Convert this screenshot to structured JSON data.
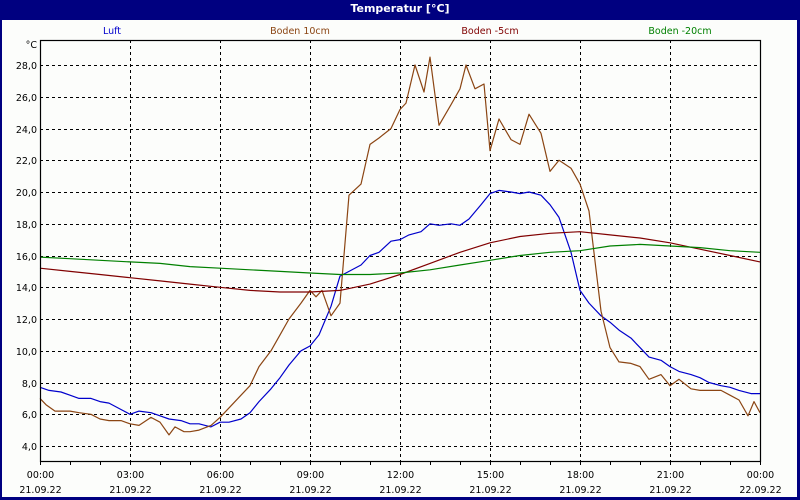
{
  "window": {
    "title": "Temperatur [°C]"
  },
  "chart_data": {
    "type": "line",
    "title": "Temperatur [°C]",
    "ylabel": "°C",
    "xlabel": "",
    "ylim": [
      3.0,
      30.0
    ],
    "grid": true,
    "legend_position": "top",
    "y_ticks": [
      "4,0",
      "6,0",
      "8,0",
      "10,0",
      "12,0",
      "14,0",
      "16,0",
      "18,0",
      "20,0",
      "22,0",
      "24,0",
      "26,0",
      "28,0"
    ],
    "x_ticks": [
      {
        "time": "00:00",
        "date": "21.09.22"
      },
      {
        "time": "03:00",
        "date": "21.09.22"
      },
      {
        "time": "06:00",
        "date": "21.09.22"
      },
      {
        "time": "09:00",
        "date": "21.09.22"
      },
      {
        "time": "12:00",
        "date": "21.09.22"
      },
      {
        "time": "15:00",
        "date": "21.09.22"
      },
      {
        "time": "18:00",
        "date": "21.09.22"
      },
      {
        "time": "21:00",
        "date": "21.09.22"
      },
      {
        "time": "00:00",
        "date": "22.09.22"
      }
    ],
    "x_unit": "hours since 21.09.22 00:00",
    "series": [
      {
        "name": "Luft",
        "color": "#0000cc",
        "x": [
          0,
          0.3,
          0.7,
          1,
          1.3,
          1.7,
          2,
          2.3,
          2.7,
          3,
          3.3,
          3.7,
          4,
          4.3,
          4.7,
          5,
          5.3,
          5.7,
          6,
          6.3,
          6.7,
          7,
          7.3,
          7.7,
          8,
          8.3,
          8.7,
          9,
          9.3,
          9.7,
          10,
          10.3,
          10.7,
          11,
          11.3,
          11.7,
          12,
          12.3,
          12.7,
          13,
          13.3,
          13.7,
          14,
          14.3,
          14.7,
          15,
          15.3,
          15.7,
          16,
          16.3,
          16.7,
          17,
          17.3,
          17.7,
          18,
          18.3,
          18.7,
          19,
          19.3,
          19.7,
          20,
          20.3,
          20.7,
          21,
          21.3,
          21.7,
          22,
          22.3,
          22.7,
          23,
          23.3,
          23.7,
          24
        ],
        "values": [
          7.7,
          7.5,
          7.4,
          7.2,
          7.0,
          7.0,
          6.8,
          6.7,
          6.3,
          6.0,
          6.2,
          6.1,
          5.9,
          5.7,
          5.6,
          5.4,
          5.4,
          5.2,
          5.5,
          5.5,
          5.7,
          6.1,
          6.8,
          7.6,
          8.3,
          9.1,
          10.0,
          10.3,
          11.0,
          12.8,
          14.7,
          15.0,
          15.4,
          16.0,
          16.2,
          16.9,
          17.0,
          17.3,
          17.5,
          18.0,
          17.9,
          18.0,
          17.9,
          18.3,
          19.2,
          19.9,
          20.1,
          20.0,
          19.9,
          20.0,
          19.8,
          19.2,
          18.4,
          16.2,
          13.8,
          13.0,
          12.2,
          11.8,
          11.3,
          10.8,
          10.2,
          9.6,
          9.4,
          9.0,
          8.7,
          8.5,
          8.3,
          8.0,
          7.8,
          7.7,
          7.5,
          7.3,
          7.3
        ]
      },
      {
        "name": "Boden 10cm",
        "color": "#8b4513",
        "x": [
          0,
          0.2,
          0.5,
          1,
          1.3,
          1.7,
          2,
          2.3,
          2.7,
          3,
          3.3,
          3.7,
          4,
          4.3,
          4.5,
          4.8,
          5,
          5.3,
          5.7,
          6,
          6.3,
          6.7,
          7,
          7.3,
          7.7,
          8,
          8.3,
          8.7,
          9,
          9.2,
          9.4,
          9.7,
          10,
          10.3,
          10.7,
          11,
          11.3,
          11.7,
          12,
          12.2,
          12.5,
          12.8,
          13,
          13.3,
          13.7,
          14,
          14.2,
          14.5,
          14.8,
          15,
          15.3,
          15.7,
          16,
          16.3,
          16.7,
          17,
          17.3,
          17.7,
          18,
          18.3,
          18.7,
          19,
          19.3,
          19.7,
          20,
          20.3,
          20.7,
          21,
          21.3,
          21.7,
          22,
          22.3,
          22.7,
          23,
          23.3,
          23.6,
          23.8,
          24
        ],
        "values": [
          7.0,
          6.6,
          6.2,
          6.2,
          6.1,
          6.0,
          5.7,
          5.6,
          5.6,
          5.4,
          5.3,
          5.8,
          5.5,
          4.7,
          5.2,
          4.9,
          4.9,
          5.0,
          5.3,
          5.8,
          6.4,
          7.2,
          7.8,
          9.0,
          10.0,
          11.0,
          12.0,
          13.0,
          13.8,
          13.4,
          13.8,
          12.2,
          13.0,
          19.8,
          20.5,
          23.0,
          23.4,
          24.0,
          25.2,
          25.6,
          28.0,
          26.3,
          28.5,
          24.2,
          25.5,
          26.5,
          28.0,
          26.5,
          26.8,
          22.6,
          24.6,
          23.3,
          23.0,
          24.9,
          23.7,
          21.3,
          22.0,
          21.5,
          20.5,
          18.8,
          12.5,
          10.2,
          9.3,
          9.2,
          9.0,
          8.2,
          8.5,
          7.8,
          8.2,
          7.6,
          7.5,
          7.5,
          7.5,
          7.2,
          6.9,
          5.9,
          6.8,
          6.1
        ]
      },
      {
        "name": "Boden -5cm",
        "color": "#800000",
        "x": [
          0,
          1,
          2,
          3,
          4,
          5,
          6,
          7,
          8,
          9,
          10,
          11,
          12,
          13,
          14,
          15,
          16,
          17,
          18,
          19,
          20,
          21,
          22,
          23,
          24
        ],
        "values": [
          15.2,
          15.0,
          14.8,
          14.6,
          14.4,
          14.2,
          14.0,
          13.8,
          13.7,
          13.7,
          13.8,
          14.2,
          14.8,
          15.5,
          16.2,
          16.8,
          17.2,
          17.4,
          17.5,
          17.3,
          17.1,
          16.8,
          16.4,
          16.0,
          15.6
        ]
      },
      {
        "name": "Boden -20cm",
        "color": "#008000",
        "x": [
          0,
          1,
          2,
          3,
          4,
          5,
          6,
          7,
          8,
          9,
          10,
          11,
          12,
          13,
          14,
          15,
          16,
          17,
          18,
          19,
          20,
          21,
          22,
          23,
          24
        ],
        "values": [
          15.9,
          15.8,
          15.7,
          15.6,
          15.5,
          15.3,
          15.2,
          15.1,
          15.0,
          14.9,
          14.8,
          14.8,
          14.9,
          15.1,
          15.4,
          15.7,
          16.0,
          16.2,
          16.3,
          16.6,
          16.7,
          16.6,
          16.5,
          16.3,
          16.2
        ]
      }
    ]
  }
}
